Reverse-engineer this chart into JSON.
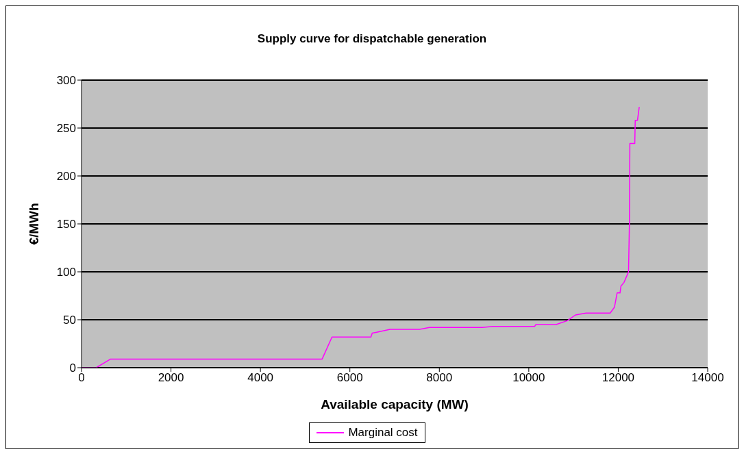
{
  "chart_data": {
    "type": "line",
    "title": "Supply curve for dispatchable generation",
    "xlabel": "Available capacity (MW)",
    "ylabel": "€/MWh",
    "series": [
      {
        "name": "Marginal cost",
        "color": "#ff00ff",
        "x": [
          0,
          330,
          650,
          5380,
          5600,
          6470,
          6500,
          6600,
          6900,
          7560,
          7780,
          8960,
          9200,
          10130,
          10160,
          10610,
          10860,
          11045,
          11280,
          11820,
          11915,
          11975,
          12040,
          12060,
          12130,
          12230,
          12250,
          12260,
          12370,
          12380,
          12430,
          12470
        ],
        "values": [
          0,
          0,
          9,
          9,
          32,
          32,
          36,
          37,
          40,
          40,
          42,
          42,
          43,
          43,
          45,
          45,
          49,
          55,
          57,
          57,
          63,
          78,
          78,
          85,
          89,
          100,
          150,
          234,
          234,
          258,
          258,
          272
        ]
      }
    ],
    "xlim": [
      0,
      14000
    ],
    "xticks": [
      0,
      2000,
      4000,
      6000,
      8000,
      10000,
      12000,
      14000
    ],
    "ylim": [
      0,
      300
    ],
    "yticks": [
      0,
      50,
      100,
      150,
      200,
      250,
      300
    ],
    "grid": "y",
    "legend": "bottom",
    "marker": "none",
    "line_style": "solid"
  }
}
